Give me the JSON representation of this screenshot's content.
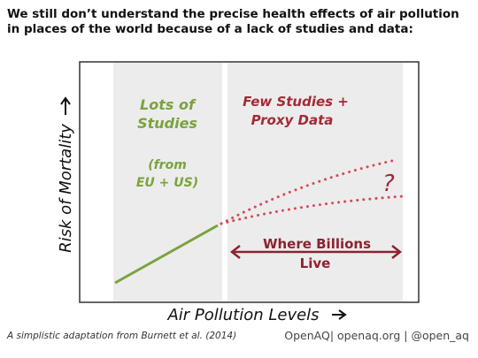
{
  "headline": {
    "line1": "We still don’t understand the precise health effects of air pollution",
    "line2": "in places of the world because of a lack of studies and data:"
  },
  "diagram": {
    "left_region": {
      "label_line1": "Lots of",
      "label_line2": "Studies",
      "sub_line1": "(from",
      "sub_line2": "EU + US)"
    },
    "right_region": {
      "label_line1": "Few Studies +",
      "label_line2": "Proxy Data",
      "question_mark": "?",
      "range_line1": "Where Billions",
      "range_line2": "Live"
    },
    "y_axis_label": "Risk of Mortality",
    "x_axis_label": "Air Pollution Levels",
    "colors": {
      "green": "#7aa33d",
      "red": "#a32a36",
      "panel": "#ececec",
      "frame": "#333333"
    }
  },
  "footer": {
    "citation": "A simplistic adaptation from Burnett et al. (2014)",
    "credit": "OpenAQ| openaq.org | @open_aq"
  }
}
